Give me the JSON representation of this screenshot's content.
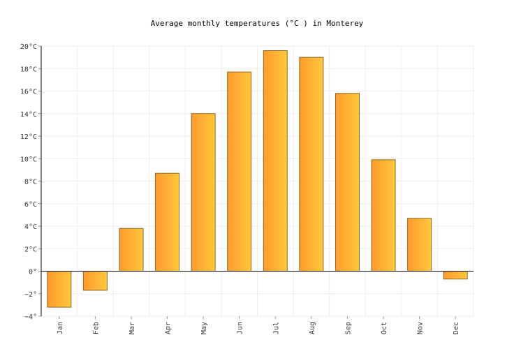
{
  "chart_data": {
    "type": "bar",
    "title": "Average monthly temperatures (°C ) in Monterey",
    "categories": [
      "Jan",
      "Feb",
      "Mar",
      "Apr",
      "May",
      "Jun",
      "Jul",
      "Aug",
      "Sep",
      "Oct",
      "Nov",
      "Dec"
    ],
    "values": [
      -3.2,
      -1.7,
      3.8,
      8.7,
      14.0,
      17.7,
      19.6,
      19.0,
      15.8,
      9.9,
      4.7,
      -0.7
    ],
    "ylim": [
      -4,
      20
    ],
    "yticks": [
      "−4°",
      "−2°",
      "0°",
      "2°C",
      "4°C",
      "6°C",
      "8°C",
      "10°C",
      "12°C",
      "14°C",
      "16°C",
      "18°C",
      "20°C"
    ],
    "grid": true,
    "colors": {
      "bar_left": "#ff9a2e",
      "bar_right": "#ffc83a",
      "bar_stroke": "#8a6a2a",
      "grid": "#eeeeee",
      "axis": "#000000"
    }
  }
}
